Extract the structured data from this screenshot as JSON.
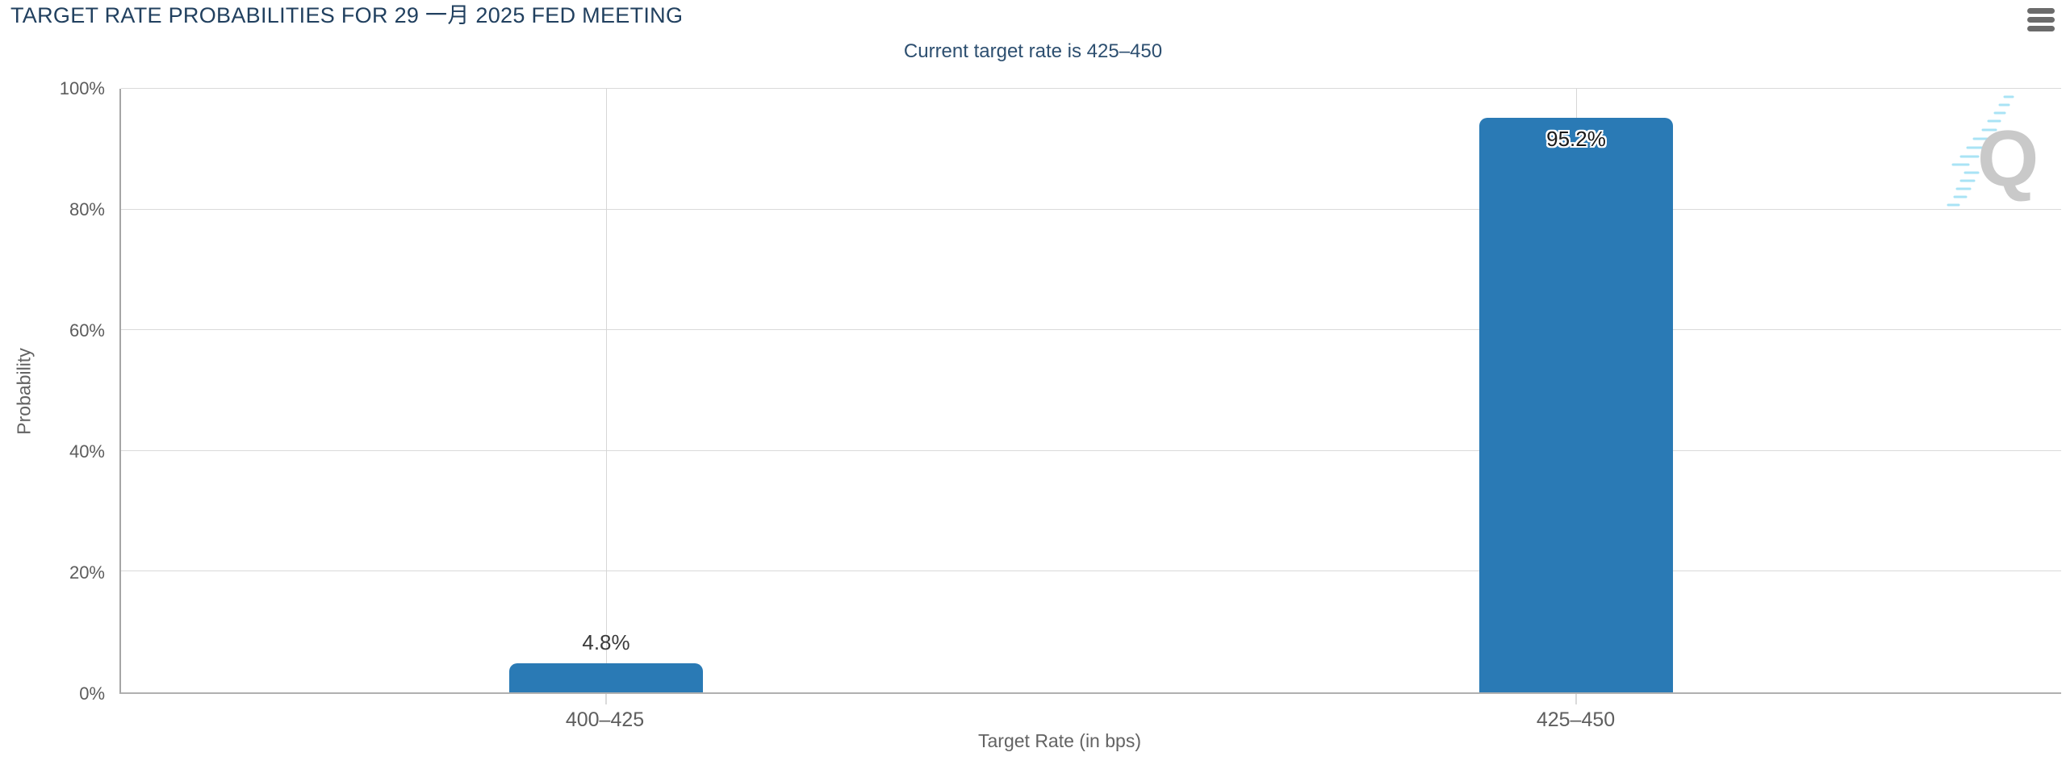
{
  "header": {
    "menu_icon": "hamburger-icon"
  },
  "chart_data": {
    "type": "bar",
    "title": "TARGET RATE PROBABILITIES FOR 29 一月 2025 FED MEETING",
    "subtitle": "Current target rate is 425–450",
    "categories": [
      "400–425",
      "425–450"
    ],
    "values": [
      4.8,
      95.2
    ],
    "value_labels": [
      "4.8%",
      "95.2%"
    ],
    "xlabel": "Target Rate (in bps)",
    "ylabel": "Probability",
    "ylim": [
      0,
      100
    ],
    "yticks": [
      "0%",
      "20%",
      "40%",
      "60%",
      "80%",
      "100%"
    ],
    "grid": true,
    "legend": false,
    "bar_color": "#2a7ab5",
    "watermark_letter": "Q"
  },
  "colors": {
    "title_navy": "#21405f",
    "subtitle_navy": "#2d4f70",
    "bar_blue": "#2a7ab5",
    "axis_text_gray": "#5c5c5c",
    "grid_gray": "#dadada",
    "watermark_gray": "#c9c9c9",
    "watermark_cyan": "#a9e3f5"
  }
}
